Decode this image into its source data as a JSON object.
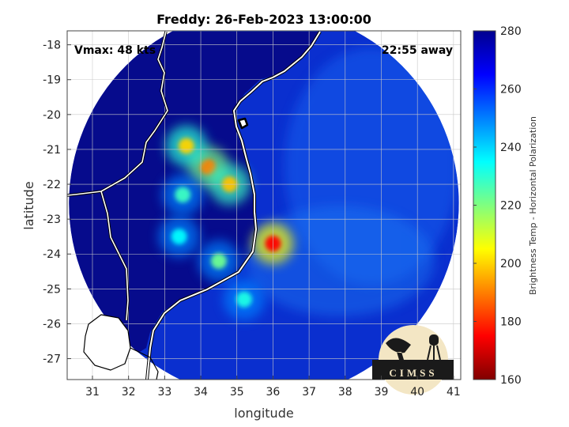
{
  "chart_data": {
    "type": "heatmap",
    "title": "Freddy: 26-Feb-2023 13:00:00",
    "annotations": {
      "vmax": "Vmax: 48 kts",
      "time_away": "22:55 away"
    },
    "xlabel": "longitude",
    "ylabel": "latitude",
    "xlim": [
      30.3,
      41.2
    ],
    "ylim": [
      -27.6,
      -17.6
    ],
    "x_ticks": [
      "31",
      "32",
      "33",
      "34",
      "35",
      "36",
      "37",
      "38",
      "39",
      "40",
      "41"
    ],
    "y_ticks": [
      "-18",
      "-19",
      "-20",
      "-21",
      "-22",
      "-23",
      "-24",
      "-25",
      "-26",
      "-27"
    ],
    "grid": true,
    "colorbar": {
      "label": "Brightness Temp - Horizontal Polarization",
      "range": [
        160,
        280
      ],
      "ticks": [
        "280",
        "260",
        "240",
        "220",
        "200",
        "180",
        "160"
      ],
      "colormap": "jet"
    },
    "swath": {
      "center_lon": 35.75,
      "center_lat": -22.55,
      "radius_deg": 5.4
    },
    "features": [
      {
        "lon": 36.0,
        "lat": -23.7,
        "value": 175
      },
      {
        "lon": 34.2,
        "lat": -21.5,
        "value": 190
      },
      {
        "lon": 33.6,
        "lat": -20.9,
        "value": 200
      },
      {
        "lon": 34.8,
        "lat": -22.0,
        "value": 198
      },
      {
        "lon": 33.5,
        "lat": -22.3,
        "value": 228
      },
      {
        "lon": 34.5,
        "lat": -24.2,
        "value": 222
      },
      {
        "lon": 35.2,
        "lat": -25.3,
        "value": 232
      },
      {
        "lon": 33.4,
        "lat": -23.5,
        "value": 235
      }
    ],
    "logo": "CIMSS"
  }
}
